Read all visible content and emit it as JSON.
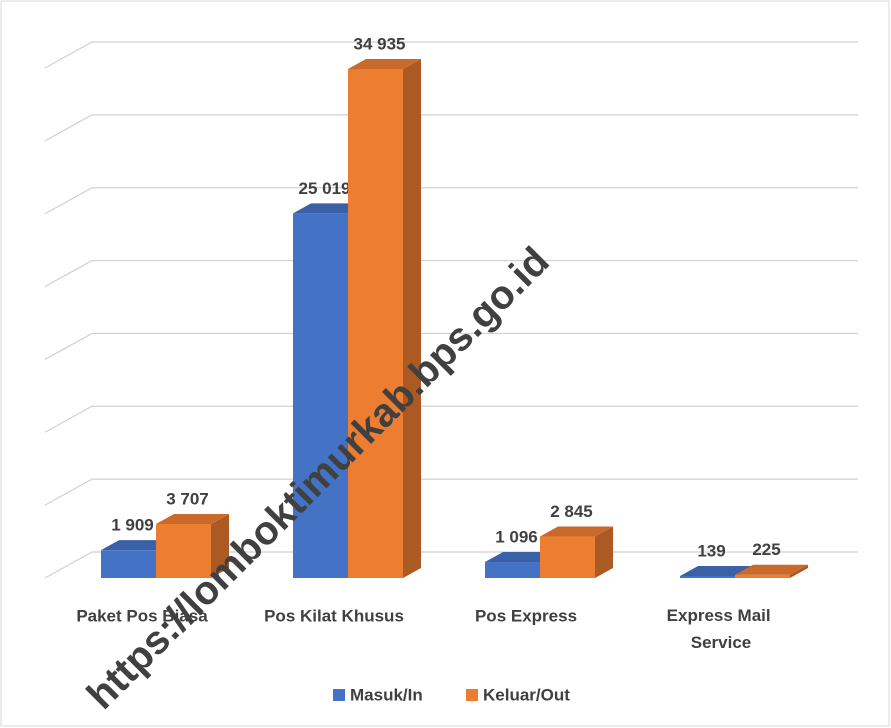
{
  "chart_data": {
    "type": "bar3d",
    "categories": [
      "Paket Pos Biasa",
      "Pos Kilat Khusus",
      "Pos Express",
      "Express Mail Service"
    ],
    "series": [
      {
        "name": "Masuk/In",
        "color": "#4472c4",
        "values": [
          1909,
          25019,
          1096,
          139
        ],
        "value_labels": [
          "1 909",
          "25 019",
          "1 096",
          "139"
        ]
      },
      {
        "name": "Keluar/Out",
        "color": "#ed7d31",
        "values": [
          3707,
          34935,
          2845,
          225
        ],
        "value_labels": [
          "3 707",
          "34 935",
          "2 845",
          "225"
        ]
      }
    ],
    "ylim": [
      0,
      35000
    ],
    "yticks": [
      0,
      5000,
      10000,
      15000,
      20000,
      25000,
      30000,
      35000
    ],
    "grid": true,
    "legend": "bottom",
    "watermark": "https://lomboktimurkab.bps.go.id"
  }
}
